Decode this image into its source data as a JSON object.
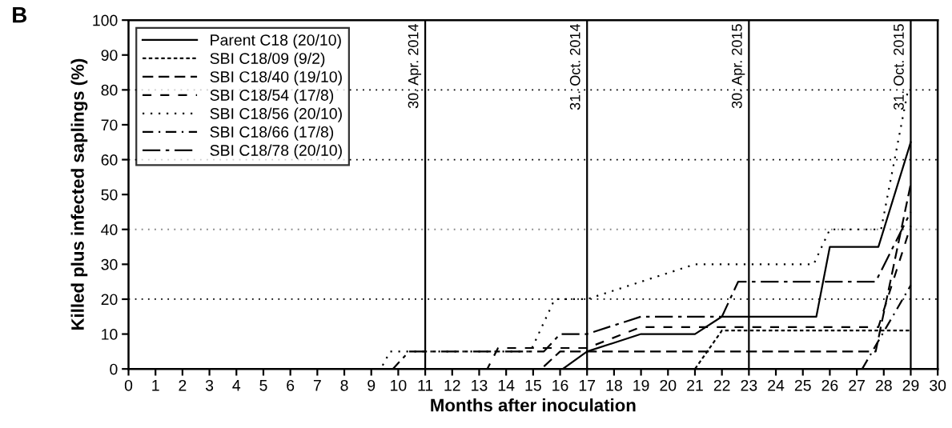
{
  "chart_data": {
    "type": "line",
    "xlabel": "Months after inoculation",
    "ylabel": "Killed plus infected saplings (%)",
    "xlim": [
      0,
      30
    ],
    "ylim": [
      0,
      100
    ],
    "xticks": [
      0,
      1,
      2,
      3,
      4,
      5,
      6,
      7,
      8,
      9,
      10,
      11,
      12,
      13,
      14,
      15,
      16,
      17,
      18,
      19,
      20,
      21,
      22,
      23,
      24,
      25,
      26,
      27,
      28,
      29,
      30
    ],
    "yticks": [
      0,
      10,
      20,
      30,
      40,
      50,
      60,
      70,
      80,
      90,
      100
    ],
    "grid": false,
    "legend": "top left",
    "marker": "none",
    "annotations": [
      "B"
    ],
    "ref_lines": [
      {
        "axis": "x",
        "value": 11,
        "label": "30. Apr. 2014",
        "color": "#000000",
        "line_style": "solid"
      },
      {
        "axis": "x",
        "value": 17,
        "label": "31. Oct. 2014",
        "color": "#000000",
        "line_style": "solid"
      },
      {
        "axis": "x",
        "value": 23,
        "label": "30. Apr. 2015",
        "color": "#000000",
        "line_style": "solid"
      },
      {
        "axis": "x",
        "value": 29,
        "label": "31. Oct. 2015",
        "color": "#000000",
        "line_style": "solid"
      },
      {
        "axis": "y",
        "value": 20,
        "label": null,
        "color": "#000000",
        "line_style": "dotted"
      },
      {
        "axis": "y",
        "value": 40,
        "label": null,
        "color": "#888888",
        "line_style": "dotted"
      },
      {
        "axis": "y",
        "value": 60,
        "label": null,
        "color": "#000000",
        "line_style": "dotted"
      },
      {
        "axis": "y",
        "value": 80,
        "label": null,
        "color": "#000000",
        "line_style": "dotted"
      }
    ],
    "series": [
      {
        "name": "Parent C18 (20/10)",
        "color": "#000000",
        "line_style": "solid",
        "x": [
          0,
          16.1,
          17,
          19,
          21,
          22,
          25.5,
          26,
          27.8,
          29
        ],
        "values": [
          0,
          0,
          5,
          10,
          10,
          15,
          15,
          35,
          35,
          65
        ]
      },
      {
        "name": "SBI C18/09 (9/2)",
        "color": "#000000",
        "line_style": "densedot",
        "x": [
          0,
          21.0,
          22.0,
          29
        ],
        "values": [
          0,
          0,
          11,
          11
        ]
      },
      {
        "name": "SBI C18/40 (19/10)",
        "color": "#000000",
        "line_style": "dashed",
        "x": [
          0,
          15.3,
          16,
          27.7,
          29
        ],
        "values": [
          0,
          0,
          5,
          5,
          53
        ]
      },
      {
        "name": "SBI C18/54 (17/8)",
        "color": "#000000",
        "line_style": "longgap",
        "x": [
          0,
          13.3,
          13.7,
          17,
          19,
          27.8,
          29
        ],
        "values": [
          0,
          0,
          6,
          6,
          12,
          12,
          41
        ]
      },
      {
        "name": "SBI C18/56 (20/10)",
        "color": "#000000",
        "line_style": "dotted",
        "x": [
          0,
          9.35,
          9.7,
          14.9,
          15.8,
          17,
          21,
          25.4,
          26,
          27.9,
          28.9
        ],
        "values": [
          0,
          0,
          5,
          5,
          20,
          20,
          30,
          30,
          40,
          40,
          80
        ]
      },
      {
        "name": "SBI C18/66 (17/8)",
        "color": "#000000",
        "line_style": "dashdot",
        "x": [
          27.2,
          29
        ],
        "values": [
          0,
          24
        ]
      },
      {
        "name": "SBI C18/78 (20/10)",
        "color": "#000000",
        "line_style": "longdash",
        "x": [
          0,
          9.8,
          10.4,
          15.4,
          16,
          17,
          19,
          22.0,
          22.6,
          27.7,
          29
        ],
        "values": [
          0,
          0,
          5,
          5,
          10,
          10,
          15,
          15,
          25,
          25,
          45
        ]
      }
    ]
  }
}
